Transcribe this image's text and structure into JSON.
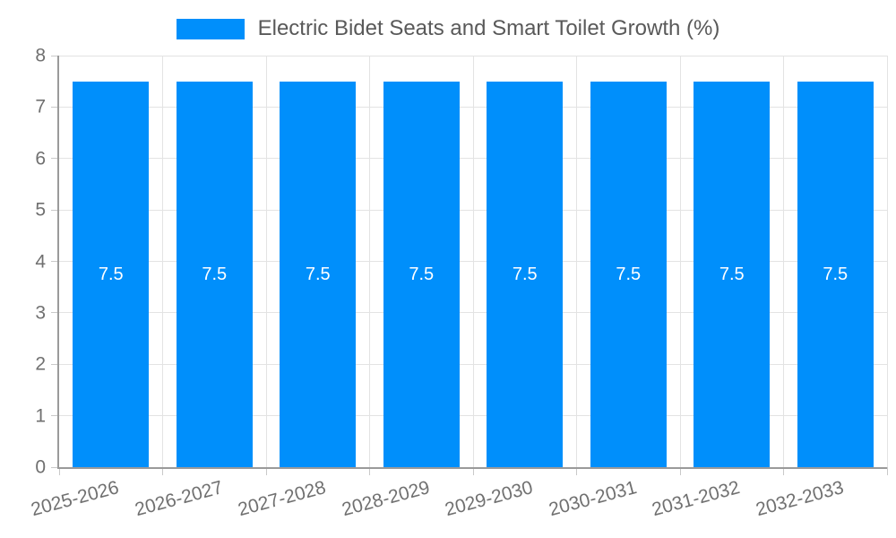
{
  "chart_data": {
    "type": "bar",
    "title": "Electric Bidet Seats and Smart Toilet Growth (%)",
    "legend_entries": [
      "Electric Bidet Seats and Smart Toilet Growth (%)"
    ],
    "legend_position": "top",
    "categories": [
      "2025-2026",
      "2026-2027",
      "2027-2028",
      "2028-2029",
      "2029-2030",
      "2030-2031",
      "2031-2032",
      "2032-2033"
    ],
    "values": [
      7.5,
      7.5,
      7.5,
      7.5,
      7.5,
      7.5,
      7.5,
      7.5
    ],
    "value_labels": [
      "7.5",
      "7.5",
      "7.5",
      "7.5",
      "7.5",
      "7.5",
      "7.5",
      "7.5"
    ],
    "xlabel": "",
    "ylabel": "",
    "ylim": [
      0,
      8
    ],
    "yticks": [
      0,
      1,
      2,
      3,
      4,
      5,
      6,
      7,
      8
    ],
    "grid": true,
    "colors": {
      "bar": "#008FFB",
      "value_label": "#FFFFFF",
      "axis_line": "#9A9A9A",
      "tick": "#C9C9C9",
      "grid_line": "#E3E3E3",
      "tick_label": "#707070",
      "title": "#595959"
    }
  }
}
